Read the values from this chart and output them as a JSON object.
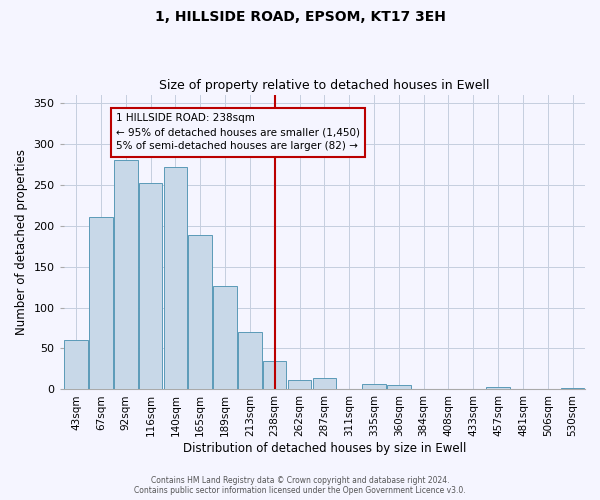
{
  "title1": "1, HILLSIDE ROAD, EPSOM, KT17 3EH",
  "title2": "Size of property relative to detached houses in Ewell",
  "xlabel": "Distribution of detached houses by size in Ewell",
  "ylabel": "Number of detached properties",
  "bin_labels": [
    "43sqm",
    "67sqm",
    "92sqm",
    "116sqm",
    "140sqm",
    "165sqm",
    "189sqm",
    "213sqm",
    "238sqm",
    "262sqm",
    "287sqm",
    "311sqm",
    "335sqm",
    "360sqm",
    "384sqm",
    "408sqm",
    "433sqm",
    "457sqm",
    "481sqm",
    "506sqm",
    "530sqm"
  ],
  "bar_heights": [
    60,
    210,
    280,
    252,
    272,
    188,
    126,
    70,
    35,
    11,
    14,
    0,
    7,
    5,
    1,
    0,
    0,
    3,
    0,
    1,
    2
  ],
  "bar_color": "#c8d8e8",
  "bar_edge_color": "#5a9ab8",
  "vline_x_index": 8,
  "vline_color": "#bb0000",
  "annotation_title": "1 HILLSIDE ROAD: 238sqm",
  "annotation_line1": "← 95% of detached houses are smaller (1,450)",
  "annotation_line2": "5% of semi-detached houses are larger (82) →",
  "annotation_box_color": "#bb0000",
  "ylim": [
    0,
    360
  ],
  "yticks": [
    0,
    50,
    100,
    150,
    200,
    250,
    300,
    350
  ],
  "footer1": "Contains HM Land Registry data © Crown copyright and database right 2024.",
  "footer2": "Contains public sector information licensed under the Open Government Licence v3.0.",
  "bg_color": "#f5f5ff",
  "grid_color": "#c5cede"
}
